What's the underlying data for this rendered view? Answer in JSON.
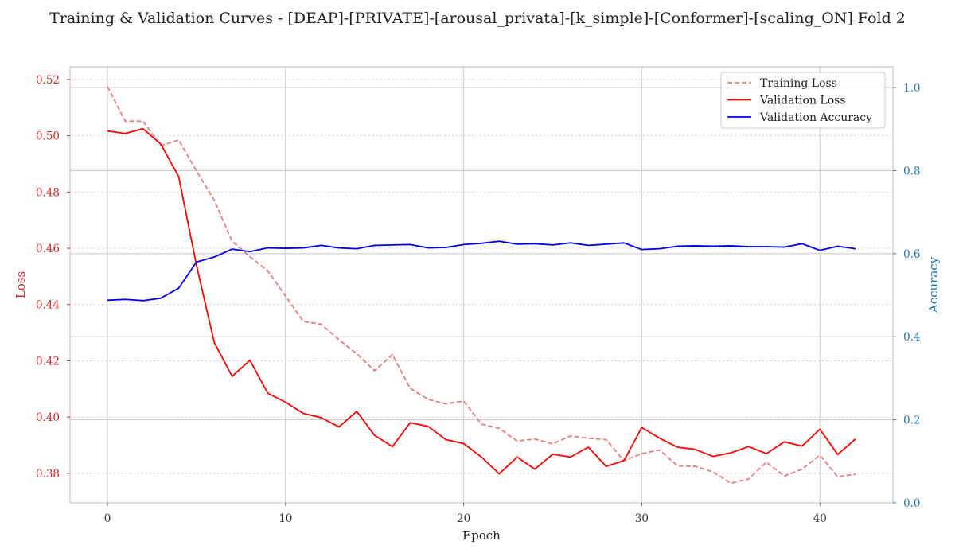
{
  "chart_data": {
    "type": "line",
    "title": "Training & Validation Curves - [DEAP]-[PRIVATE]-[arousal_privata]-[k_simple]-[Conformer]-[scaling_ON] Fold 2",
    "xlabel": "Epoch",
    "ylabel": "Loss",
    "y2label": "Accuracy",
    "xlim": [
      -2.1,
      44.1
    ],
    "ylim": [
      0.3695,
      0.5245
    ],
    "y2lim": [
      0.0,
      1.05
    ],
    "xticks": [
      0,
      10,
      20,
      30,
      40
    ],
    "yticks": [
      0.38,
      0.4,
      0.42,
      0.44,
      0.46,
      0.48,
      0.5,
      0.52
    ],
    "y2ticks": [
      0.0,
      0.2,
      0.4,
      0.6,
      0.8,
      1.0
    ],
    "grid": true,
    "legend_position": "upper right",
    "x": [
      0,
      1,
      2,
      3,
      4,
      5,
      6,
      7,
      8,
      9,
      10,
      11,
      12,
      13,
      14,
      15,
      16,
      17,
      18,
      19,
      20,
      21,
      22,
      23,
      24,
      25,
      26,
      27,
      28,
      29,
      30,
      31,
      32,
      33,
      34,
      35,
      36,
      37,
      38,
      39,
      40,
      41,
      42
    ],
    "series": [
      {
        "name": "Training Loss",
        "axis": "left",
        "style": "dashed",
        "color": "#ec7c7c",
        "values": [
          0.5175,
          0.5052,
          0.5052,
          0.4965,
          0.4985,
          0.4875,
          0.477,
          0.4625,
          0.457,
          0.452,
          0.443,
          0.434,
          0.433,
          0.4275,
          0.4225,
          0.4165,
          0.4222,
          0.4102,
          0.4063,
          0.4047,
          0.4057,
          0.3975,
          0.396,
          0.3915,
          0.3922,
          0.3905,
          0.3933,
          0.3925,
          0.392,
          0.3845,
          0.387,
          0.3883,
          0.3827,
          0.3825,
          0.3805,
          0.3765,
          0.378,
          0.384,
          0.379,
          0.3815,
          0.3865,
          0.3788,
          0.3797
        ]
      },
      {
        "name": "Validation Loss",
        "axis": "left",
        "style": "solid",
        "color": "#ff0000",
        "values": [
          0.5017,
          0.5008,
          0.5025,
          0.497,
          0.4855,
          0.454,
          0.4265,
          0.4145,
          0.4202,
          0.4085,
          0.4053,
          0.4013,
          0.3998,
          0.3965,
          0.402,
          0.3935,
          0.3895,
          0.398,
          0.3967,
          0.392,
          0.3906,
          0.3858,
          0.3798,
          0.3858,
          0.3815,
          0.3868,
          0.3858,
          0.3893,
          0.3825,
          0.3845,
          0.3963,
          0.3925,
          0.3893,
          0.3885,
          0.386,
          0.3873,
          0.3895,
          0.387,
          0.3912,
          0.3897,
          0.3957,
          0.3867,
          0.3922
        ]
      },
      {
        "name": "Validation Accuracy",
        "axis": "right",
        "style": "solid",
        "color": "#0000ee",
        "values": [
          0.488,
          0.49,
          0.487,
          0.493,
          0.517,
          0.58,
          0.592,
          0.611,
          0.605,
          0.614,
          0.613,
          0.614,
          0.62,
          0.614,
          0.612,
          0.62,
          0.621,
          0.622,
          0.614,
          0.615,
          0.622,
          0.625,
          0.63,
          0.623,
          0.624,
          0.621,
          0.626,
          0.62,
          0.623,
          0.626,
          0.61,
          0.612,
          0.618,
          0.619,
          0.618,
          0.619,
          0.617,
          0.617,
          0.616,
          0.624,
          0.608,
          0.618,
          0.612
        ]
      }
    ]
  }
}
